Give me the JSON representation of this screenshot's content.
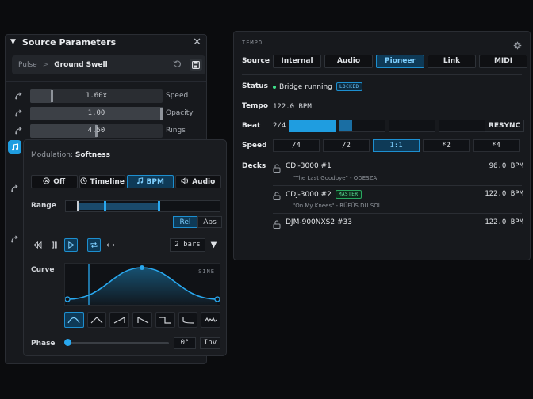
{
  "source_params": {
    "title": "Source Parameters",
    "breadcrumb": {
      "root": "Pulse",
      "separator": ">",
      "leaf": "Ground Swell"
    },
    "params": [
      {
        "value": "1.60x",
        "label": "Speed",
        "fill": 0.17
      },
      {
        "value": "1.00",
        "label": "Opacity",
        "fill": 1.0
      },
      {
        "value": "4.50",
        "label": "Rings",
        "fill": 0.5
      }
    ]
  },
  "modulation": {
    "prefix": "Modulation:",
    "target": "Softness",
    "modes": [
      {
        "label": "Off",
        "icon": "off-icon",
        "active": false
      },
      {
        "label": "Timeline",
        "icon": "clock-icon",
        "active": false
      },
      {
        "label": "BPM",
        "icon": "music-note-icon",
        "active": true
      },
      {
        "label": "Audio",
        "icon": "speaker-icon",
        "active": false
      }
    ],
    "range_label": "Range",
    "range_modes": [
      {
        "label": "Rel",
        "active": true
      },
      {
        "label": "Abs",
        "active": false
      }
    ],
    "bars_value": "2 bars",
    "curve_label": "Curve",
    "curve_tag": "SINE",
    "phase_label": "Phase",
    "phase_value": "0°",
    "invert_label": "Inv"
  },
  "tempo": {
    "header": "TEMPO",
    "source_label": "Source",
    "sources": [
      {
        "label": "Internal",
        "active": false
      },
      {
        "label": "Audio",
        "active": false
      },
      {
        "label": "Pioneer",
        "active": true
      },
      {
        "label": "Link",
        "active": false
      },
      {
        "label": "MIDI",
        "active": false
      }
    ],
    "status_label": "Status",
    "status_text": "Bridge running",
    "status_badge": "LOCKED",
    "tempo_label": "Tempo",
    "bpm": "122.0 BPM",
    "beat_label": "Beat",
    "beat_position": "2/4",
    "resync_label": "RESYNC",
    "speed_label": "Speed",
    "speeds": [
      {
        "label": "/4",
        "active": false
      },
      {
        "label": "/2",
        "active": false
      },
      {
        "label": "1:1",
        "active": true
      },
      {
        "label": "*2",
        "active": false
      },
      {
        "label": "*4",
        "active": false
      }
    ],
    "decks_label": "Decks",
    "decks": [
      {
        "name": "CDJ-3000 #1",
        "badge": "",
        "bpm": "96.0 BPM",
        "track": "\"The Last Goodbye\" - ODESZA"
      },
      {
        "name": "CDJ-3000 #2",
        "badge": "MASTER",
        "bpm": "122.0 BPM",
        "track": "\"On My Knees\" - RÜFÜS DU SOL"
      },
      {
        "name": "DJM-900NXS2 #33",
        "badge": "",
        "bpm": "122.0 BPM",
        "track": ""
      }
    ]
  },
  "colors": {
    "accent": "#1f9de0",
    "accent_dark": "#0e3a57",
    "status_green": "#3ee08a"
  }
}
